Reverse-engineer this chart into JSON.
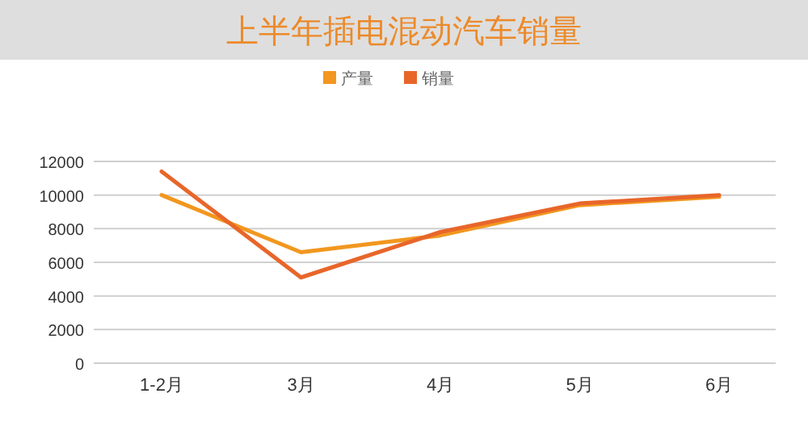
{
  "chart_data": {
    "type": "line",
    "title": "上半年插电混动汽车销量",
    "categories": [
      "1-2月",
      "3月",
      "4月",
      "5月",
      "6月"
    ],
    "series": [
      {
        "name": "产量",
        "color": "#f2971f",
        "values": [
          10000,
          6600,
          7600,
          9400,
          9900
        ]
      },
      {
        "name": "销量",
        "color": "#e8662a",
        "values": [
          11400,
          5100,
          7800,
          9500,
          10000
        ]
      }
    ],
    "ylim": [
      0,
      12000
    ],
    "yticks": [
      0,
      2000,
      4000,
      6000,
      8000,
      10000,
      12000
    ],
    "grid": "y",
    "legend": "top"
  }
}
